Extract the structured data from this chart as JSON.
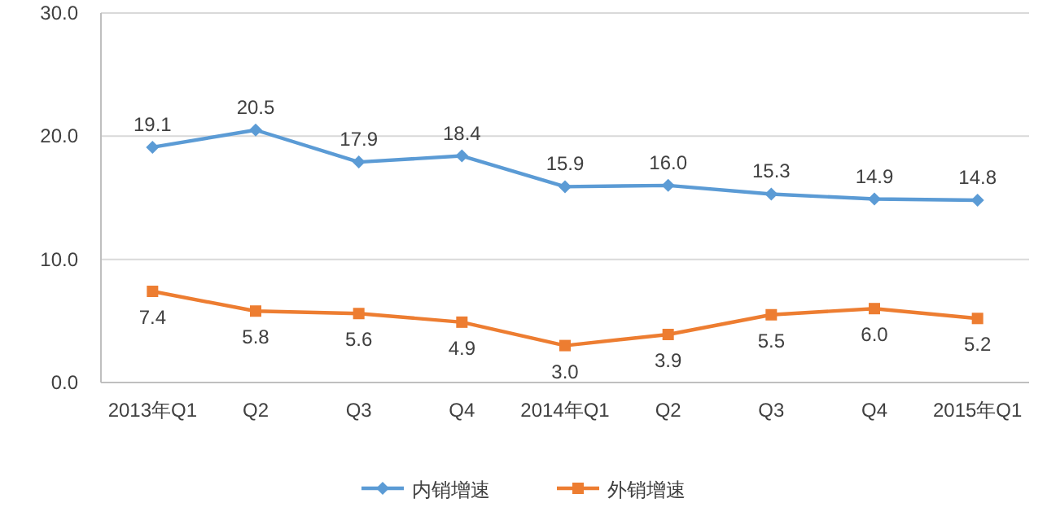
{
  "chart_data": {
    "type": "line",
    "categories": [
      "2013年Q1",
      "Q2",
      "Q3",
      "Q4",
      "2014年Q1",
      "Q2",
      "Q3",
      "Q4",
      "2015年Q1"
    ],
    "series": [
      {
        "name": "内销增速",
        "color": "#5b9bd5",
        "marker": "diamond",
        "values": [
          19.1,
          20.5,
          17.9,
          18.4,
          15.9,
          16.0,
          15.3,
          14.9,
          14.8
        ],
        "value_labels": [
          "19.1",
          "20.5",
          "17.9",
          "18.4",
          "15.9",
          "16.0",
          "15.3",
          "14.9",
          "14.8"
        ]
      },
      {
        "name": "外销增速",
        "color": "#ed7d31",
        "marker": "square",
        "values": [
          7.4,
          5.8,
          5.6,
          4.9,
          3.0,
          3.9,
          5.5,
          6.0,
          5.2
        ],
        "value_labels": [
          "7.4",
          "5.8",
          "5.6",
          "4.9",
          "3.0",
          "3.9",
          "5.5",
          "6.0",
          "5.2"
        ]
      }
    ],
    "ylim": [
      0,
      30
    ],
    "yticks": [
      {
        "value": 0,
        "label": "0.0"
      },
      {
        "value": 10,
        "label": "10.0"
      },
      {
        "value": 20,
        "label": "20.0"
      },
      {
        "value": 30,
        "label": "30.0"
      }
    ],
    "grid": "y",
    "legend": "bottom"
  }
}
